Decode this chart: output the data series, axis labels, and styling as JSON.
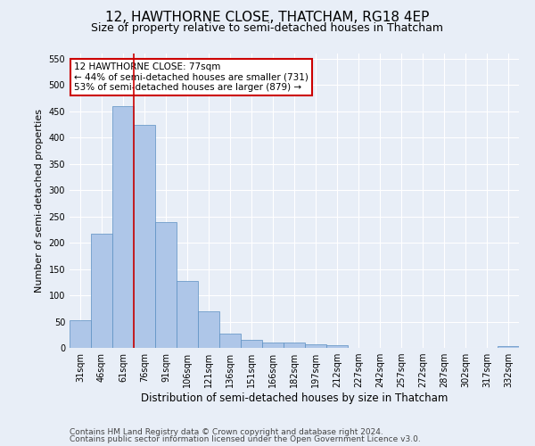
{
  "title": "12, HAWTHORNE CLOSE, THATCHAM, RG18 4EP",
  "subtitle": "Size of property relative to semi-detached houses in Thatcham",
  "xlabel": "Distribution of semi-detached houses by size in Thatcham",
  "ylabel": "Number of semi-detached properties",
  "categories": [
    "31sqm",
    "46sqm",
    "61sqm",
    "76sqm",
    "91sqm",
    "106sqm",
    "121sqm",
    "136sqm",
    "151sqm",
    "166sqm",
    "182sqm",
    "197sqm",
    "212sqm",
    "227sqm",
    "242sqm",
    "257sqm",
    "272sqm",
    "287sqm",
    "302sqm",
    "317sqm",
    "332sqm"
  ],
  "values": [
    52,
    218,
    460,
    425,
    240,
    128,
    70,
    28,
    15,
    10,
    10,
    7,
    5,
    0,
    0,
    0,
    0,
    0,
    0,
    0,
    4
  ],
  "bar_color": "#aec6e8",
  "bar_edge_color": "#5a8fc2",
  "annotation_line1": "12 HAWTHORNE CLOSE: 77sqm",
  "annotation_line2": "← 44% of semi-detached houses are smaller (731)",
  "annotation_line3": "53% of semi-detached houses are larger (879) →",
  "annotation_box_color": "#ffffff",
  "annotation_box_edge": "#cc0000",
  "vline_color": "#cc0000",
  "vline_x": 2.5,
  "ylim": [
    0,
    560
  ],
  "yticks": [
    0,
    50,
    100,
    150,
    200,
    250,
    300,
    350,
    400,
    450,
    500,
    550
  ],
  "footer1": "Contains HM Land Registry data © Crown copyright and database right 2024.",
  "footer2": "Contains public sector information licensed under the Open Government Licence v3.0.",
  "bg_color": "#e8eef7",
  "plot_bg_color": "#e8eef7",
  "title_fontsize": 11,
  "subtitle_fontsize": 9,
  "axis_label_fontsize": 8,
  "tick_fontsize": 7,
  "annotation_fontsize": 7.5,
  "footer_fontsize": 6.5
}
